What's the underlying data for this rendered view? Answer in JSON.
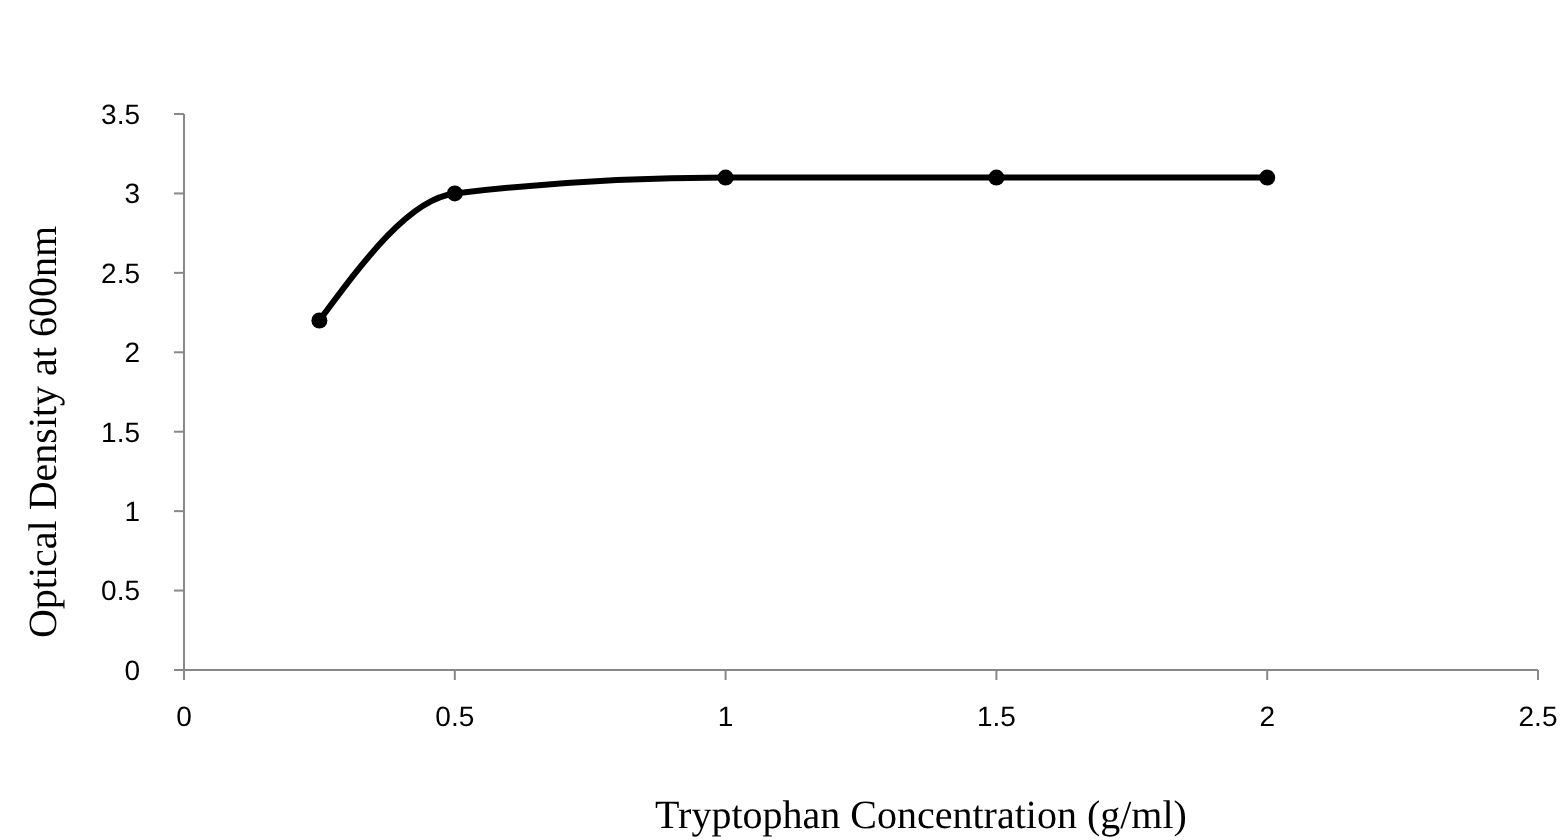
{
  "chart_data": {
    "type": "line",
    "xlabel": "Tryptophan Concentration (g/ml)",
    "ylabel": "Optical Density at 600nm",
    "x": [
      0.25,
      0.5,
      1,
      1.5,
      2
    ],
    "series": [
      {
        "color": "#000000",
        "values": [
          2.2,
          3.0,
          3.1,
          3.1,
          3.1
        ]
      }
    ],
    "xlim": [
      0,
      2.5
    ],
    "xticks": [
      0,
      0.5,
      1,
      1.5,
      2,
      2.5
    ],
    "ylim": [
      0,
      3.5
    ],
    "yticks": [
      0,
      0.5,
      1,
      1.5,
      2,
      2.5,
      3,
      3.5
    ],
    "marker": "circle",
    "line_style": "solid",
    "grid": false
  }
}
